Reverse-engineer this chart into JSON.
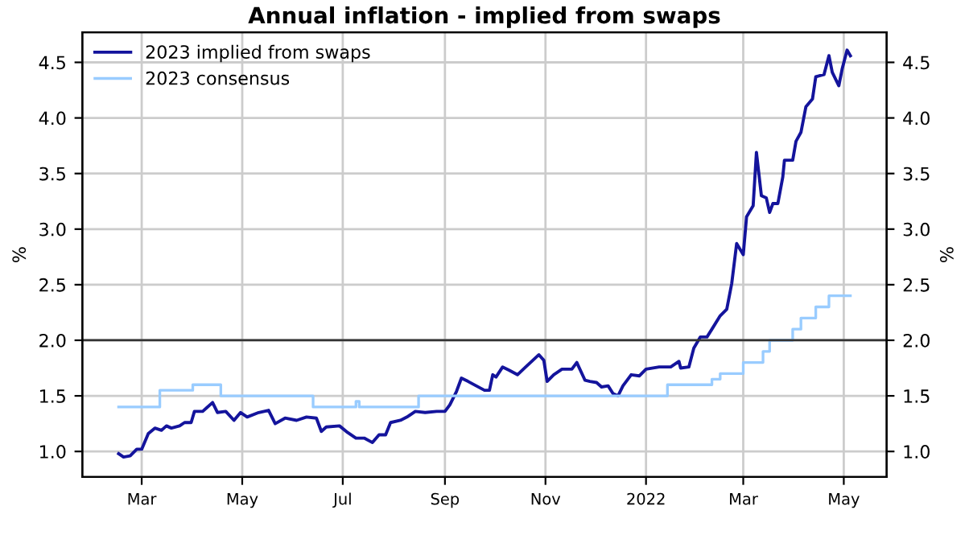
{
  "chart_data": {
    "type": "line",
    "title": "Annual inflation - implied from swaps",
    "ylabel": "%",
    "y2label": "%",
    "series": [
      {
        "name": "2023 implied from swaps",
        "color": "#14149c",
        "x": [
          "2021-02-15",
          "2021-02-18",
          "2021-02-22",
          "2021-02-26",
          "2021-03-01",
          "2021-03-05",
          "2021-03-09",
          "2021-03-13",
          "2021-03-16",
          "2021-03-19",
          "2021-03-24",
          "2021-03-27",
          "2021-03-31",
          "2021-04-02",
          "2021-04-07",
          "2021-04-13",
          "2021-04-16",
          "2021-04-21",
          "2021-04-26",
          "2021-04-30",
          "2021-05-04",
          "2021-05-11",
          "2021-05-17",
          "2021-05-21",
          "2021-05-27",
          "2021-06-03",
          "2021-06-09",
          "2021-06-15",
          "2021-06-18",
          "2021-06-21",
          "2021-06-29",
          "2021-07-04",
          "2021-07-09",
          "2021-07-14",
          "2021-07-19",
          "2021-07-23",
          "2021-07-27",
          "2021-07-30",
          "2021-08-05",
          "2021-08-09",
          "2021-08-14",
          "2021-08-20",
          "2021-08-27",
          "2021-09-01",
          "2021-09-04",
          "2021-09-08",
          "2021-09-11",
          "2021-09-15",
          "2021-09-20",
          "2021-09-25",
          "2021-09-28",
          "2021-09-30",
          "2021-10-02",
          "2021-10-06",
          "2021-10-10",
          "2021-10-15",
          "2021-10-20",
          "2021-10-28",
          "2021-10-31",
          "2021-11-02",
          "2021-11-06",
          "2021-11-11",
          "2021-11-17",
          "2021-11-20",
          "2021-11-25",
          "2021-11-28",
          "2021-12-02",
          "2021-12-05",
          "2021-12-09",
          "2021-12-12",
          "2021-12-15",
          "2021-12-18",
          "2021-12-23",
          "2021-12-28",
          "2022-01-01",
          "2022-01-09",
          "2022-01-16",
          "2022-01-21",
          "2022-01-22",
          "2022-01-27",
          "2022-01-30",
          "2022-02-03",
          "2022-02-07",
          "2022-02-10",
          "2022-02-15",
          "2022-02-19",
          "2022-02-22",
          "2022-02-25",
          "2022-03-01",
          "2022-03-03",
          "2022-03-07",
          "2022-03-09",
          "2022-03-12",
          "2022-03-15",
          "2022-03-17",
          "2022-03-19",
          "2022-03-22",
          "2022-03-25",
          "2022-03-26",
          "2022-03-31",
          "2022-04-02",
          "2022-04-05",
          "2022-04-08",
          "2022-04-12",
          "2022-04-14",
          "2022-04-19",
          "2022-04-22",
          "2022-04-24",
          "2022-04-28",
          "2022-04-30",
          "2022-05-03",
          "2022-05-05"
        ],
        "values": [
          0.98,
          0.95,
          0.96,
          1.02,
          1.02,
          1.16,
          1.21,
          1.19,
          1.23,
          1.21,
          1.23,
          1.26,
          1.26,
          1.36,
          1.36,
          1.44,
          1.35,
          1.36,
          1.28,
          1.35,
          1.31,
          1.35,
          1.37,
          1.25,
          1.3,
          1.28,
          1.31,
          1.3,
          1.18,
          1.22,
          1.23,
          1.17,
          1.12,
          1.12,
          1.08,
          1.15,
          1.15,
          1.26,
          1.28,
          1.31,
          1.36,
          1.35,
          1.36,
          1.36,
          1.42,
          1.54,
          1.66,
          1.63,
          1.59,
          1.55,
          1.55,
          1.69,
          1.67,
          1.76,
          1.73,
          1.69,
          1.76,
          1.87,
          1.82,
          1.63,
          1.69,
          1.74,
          1.74,
          1.8,
          1.64,
          1.63,
          1.62,
          1.58,
          1.59,
          1.52,
          1.5,
          1.59,
          1.69,
          1.68,
          1.74,
          1.76,
          1.76,
          1.81,
          1.75,
          1.76,
          1.93,
          2.03,
          2.03,
          2.1,
          2.22,
          2.28,
          2.51,
          2.87,
          2.77,
          3.11,
          3.21,
          3.69,
          3.3,
          3.28,
          3.15,
          3.23,
          3.23,
          3.47,
          3.62,
          3.62,
          3.79,
          3.87,
          4.1,
          4.17,
          4.37,
          4.39,
          4.56,
          4.41,
          4.29,
          4.44,
          4.61,
          4.56
        ]
      },
      {
        "name": "2023 consensus",
        "color": "#99ccff",
        "type": "step",
        "x": [
          "2021-02-15",
          "2021-03-12",
          "2021-04-01",
          "2021-04-18",
          "2021-06-13",
          "2021-07-09",
          "2021-07-11",
          "2021-08-16",
          "2022-01-14",
          "2022-02-10",
          "2022-02-15",
          "2022-03-01",
          "2022-03-13",
          "2022-03-17",
          "2022-03-31",
          "2022-04-05",
          "2022-04-14",
          "2022-04-22",
          "2022-05-05"
        ],
        "values": [
          1.4,
          1.55,
          1.6,
          1.5,
          1.4,
          1.45,
          1.4,
          1.5,
          1.6,
          1.65,
          1.7,
          1.8,
          1.9,
          2.0,
          2.1,
          2.2,
          2.3,
          2.4,
          2.4
        ]
      }
    ],
    "xlim": [
      "2021-01-24",
      "2022-05-27"
    ],
    "xticks": [
      {
        "value": "2021-03-01",
        "label": "Mar"
      },
      {
        "value": "2021-05-01",
        "label": "May"
      },
      {
        "value": "2021-07-01",
        "label": "Jul"
      },
      {
        "value": "2021-09-01",
        "label": "Sep"
      },
      {
        "value": "2021-11-01",
        "label": "Nov"
      },
      {
        "value": "2022-01-01",
        "label": "2022"
      },
      {
        "value": "2022-03-01",
        "label": "Mar"
      },
      {
        "value": "2022-05-01",
        "label": "May"
      }
    ],
    "ylim": [
      0.77,
      4.77
    ],
    "yticks": [
      {
        "value": 1,
        "label": "1.0"
      },
      1.5,
      {
        "value": 2,
        "label": "2.0"
      },
      2.5,
      {
        "value": 3,
        "label": "3.0"
      },
      3.5,
      {
        "value": 4,
        "label": "4.0"
      },
      4.5
    ],
    "y2lim": [
      0.77,
      4.77
    ],
    "y2ticks": [
      {
        "value": 1,
        "label": "1.0"
      },
      1.5,
      {
        "value": 2,
        "label": "2.0"
      },
      2.5,
      {
        "value": 3,
        "label": "3.0"
      },
      3.5,
      {
        "value": 4,
        "label": "4.0"
      },
      4.5
    ],
    "ref_lines": [
      {
        "axis": "y",
        "value": 2.0,
        "color": "#333333"
      }
    ],
    "grid": true,
    "legend": "top left"
  }
}
